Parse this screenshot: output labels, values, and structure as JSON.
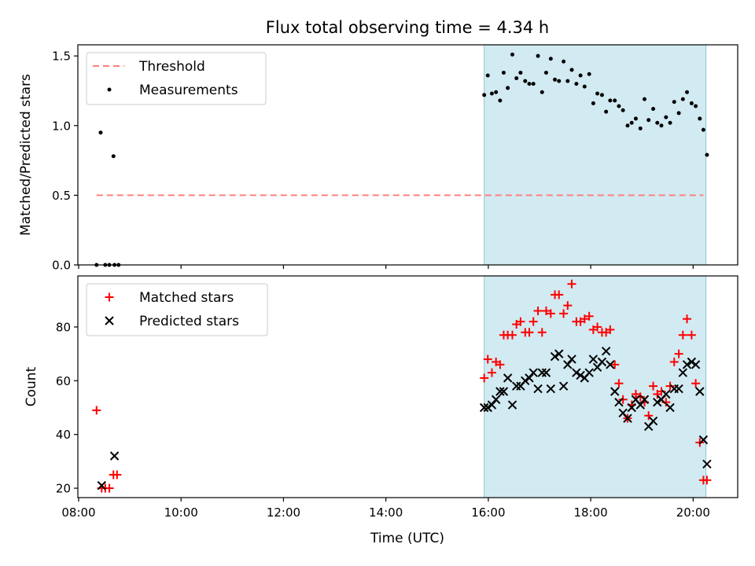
{
  "figure": {
    "title": "Flux total observing time = 4.34 h",
    "xlabel": "Time (UTC)"
  },
  "colors": {
    "shade": "#add8e6",
    "shade_edge": "#8cc6d6",
    "threshold": "#ff7f7f",
    "measurements": "#000000",
    "matched": "#ff0000",
    "predicted": "#000000"
  },
  "chart_data": [
    {
      "type": "scatter",
      "ylabel": "Matched/Predicted stars",
      "xlim": [
        7.985,
        20.87
      ],
      "ylim": [
        0,
        1.58
      ],
      "x_ticks": [
        8,
        10,
        12,
        14,
        16,
        18,
        20
      ],
      "x_tick_labels": [
        "08:00",
        "10:00",
        "12:00",
        "14:00",
        "16:00",
        "18:00",
        "20:00"
      ],
      "y_ticks": [
        0,
        0.5,
        1.0,
        1.5
      ],
      "y_tick_labels": [
        "0.0",
        "0.5",
        "1.0",
        "1.5"
      ],
      "legend_position": "top-left",
      "shaded_region": [
        15.92,
        20.25
      ],
      "threshold": {
        "name": "Threshold",
        "y": 0.5,
        "x_range": [
          8.35,
          20.2
        ]
      },
      "series": [
        {
          "name": "Measurements",
          "x": [
            8.35,
            8.43,
            8.52,
            8.6,
            8.7,
            8.68,
            8.78,
            15.92,
            15.99,
            16.07,
            16.15,
            16.23,
            16.3,
            16.38,
            16.47,
            16.55,
            16.63,
            16.72,
            16.8,
            16.88,
            16.97,
            17.05,
            17.13,
            17.22,
            17.3,
            17.38,
            17.47,
            17.55,
            17.63,
            17.72,
            17.8,
            17.88,
            17.97,
            18.05,
            18.13,
            18.22,
            18.3,
            18.38,
            18.47,
            18.55,
            18.63,
            18.72,
            18.8,
            18.88,
            18.97,
            19.05,
            19.13,
            19.22,
            19.3,
            19.38,
            19.47,
            19.55,
            19.63,
            19.72,
            19.8,
            19.88,
            19.97,
            20.05,
            20.13,
            20.2,
            20.27
          ],
          "y": [
            0.0,
            0.95,
            0.0,
            0.0,
            0.0,
            0.78,
            0.0,
            1.22,
            1.36,
            1.23,
            1.24,
            1.18,
            1.38,
            1.27,
            1.51,
            1.34,
            1.38,
            1.32,
            1.3,
            1.3,
            1.5,
            1.24,
            1.38,
            1.48,
            1.33,
            1.32,
            1.46,
            1.32,
            1.4,
            1.3,
            1.36,
            1.28,
            1.37,
            1.16,
            1.23,
            1.22,
            1.1,
            1.18,
            1.18,
            1.14,
            1.11,
            1.0,
            1.02,
            1.05,
            0.98,
            1.19,
            1.04,
            1.12,
            1.02,
            1.0,
            1.06,
            1.02,
            1.17,
            1.09,
            1.19,
            1.24,
            1.16,
            1.14,
            1.05,
            0.97,
            0.79
          ]
        }
      ]
    },
    {
      "type": "scatter",
      "ylabel": "Count",
      "xlim": [
        7.985,
        20.87
      ],
      "ylim": [
        16.5,
        99
      ],
      "x_ticks": [
        8,
        10,
        12,
        14,
        16,
        18,
        20
      ],
      "x_tick_labels": [
        "08:00",
        "10:00",
        "12:00",
        "14:00",
        "16:00",
        "18:00",
        "20:00"
      ],
      "y_ticks": [
        20,
        40,
        60,
        80
      ],
      "y_tick_labels": [
        "20",
        "40",
        "60",
        "80"
      ],
      "legend_position": "top-left",
      "shaded_region": [
        15.92,
        20.25
      ],
      "series": [
        {
          "name": "Matched stars",
          "marker": "plus",
          "x": [
            8.35,
            8.45,
            8.52,
            8.6,
            8.68,
            8.75,
            15.92,
            15.99,
            16.07,
            16.15,
            16.23,
            16.3,
            16.38,
            16.47,
            16.55,
            16.63,
            16.72,
            16.8,
            16.88,
            16.97,
            17.05,
            17.13,
            17.22,
            17.3,
            17.38,
            17.47,
            17.55,
            17.63,
            17.72,
            17.8,
            17.88,
            17.97,
            18.05,
            18.13,
            18.22,
            18.3,
            18.38,
            18.47,
            18.55,
            18.63,
            18.72,
            18.8,
            18.88,
            18.97,
            19.05,
            19.13,
            19.22,
            19.3,
            19.38,
            19.47,
            19.55,
            19.63,
            19.72,
            19.8,
            19.88,
            19.97,
            20.05,
            20.13,
            20.2,
            20.27
          ],
          "y": [
            49,
            20,
            20,
            20,
            25,
            25,
            61,
            68,
            63,
            67,
            66,
            77,
            77,
            77,
            81,
            82,
            78,
            78,
            82,
            86,
            78,
            86,
            85,
            92,
            92,
            85,
            88,
            96,
            82,
            82,
            83,
            84,
            79,
            80,
            78,
            78,
            79,
            66,
            59,
            53,
            46,
            51,
            55,
            54,
            52,
            47,
            58,
            55,
            56,
            52,
            58,
            67,
            70,
            77,
            83,
            77,
            59,
            37,
            23,
            23
          ]
        },
        {
          "name": "Predicted stars",
          "marker": "x",
          "x": [
            8.45,
            8.7,
            15.92,
            15.99,
            16.07,
            16.15,
            16.23,
            16.3,
            16.38,
            16.47,
            16.55,
            16.63,
            16.72,
            16.8,
            16.88,
            16.97,
            17.05,
            17.13,
            17.22,
            17.3,
            17.38,
            17.47,
            17.55,
            17.63,
            17.72,
            17.8,
            17.88,
            17.97,
            18.05,
            18.13,
            18.22,
            18.3,
            18.38,
            18.47,
            18.55,
            18.63,
            18.72,
            18.8,
            18.88,
            18.97,
            19.05,
            19.13,
            19.22,
            19.3,
            19.38,
            19.47,
            19.55,
            19.63,
            19.72,
            19.8,
            19.88,
            19.97,
            20.05,
            20.13,
            20.2,
            20.27
          ],
          "y": [
            21,
            32,
            50,
            50,
            51,
            53,
            56,
            56,
            61,
            51,
            58,
            58,
            60,
            61,
            63,
            57,
            63,
            63,
            57,
            69,
            70,
            58,
            66,
            68,
            63,
            62,
            61,
            63,
            68,
            65,
            67,
            71,
            66,
            56,
            52,
            48,
            46,
            50,
            53,
            51,
            53,
            43,
            45,
            52,
            53,
            55,
            50,
            57,
            57,
            63,
            66,
            67,
            66,
            56,
            38,
            29
          ]
        }
      ]
    }
  ]
}
